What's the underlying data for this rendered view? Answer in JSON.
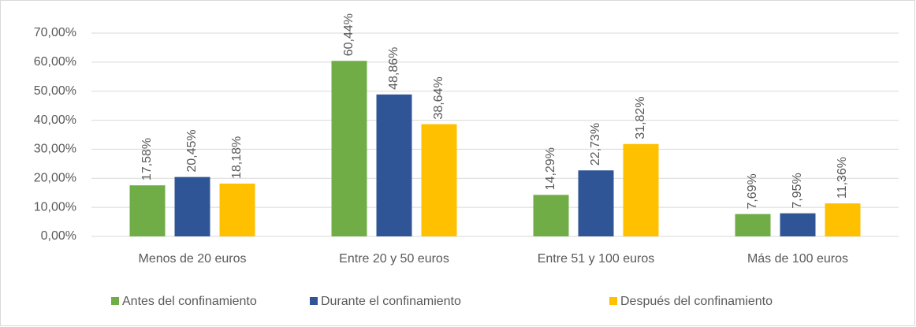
{
  "chart_data": {
    "type": "bar",
    "categories": [
      "Menos de 20 euros",
      "Entre 20 y 50 euros",
      "Entre 51 y 100 euros",
      "Más de 100 euros"
    ],
    "series": [
      {
        "name": "Antes del confinamiento",
        "color": "#70ad47",
        "values": [
          17.58,
          60.44,
          14.29,
          7.69
        ],
        "value_labels": [
          "17,58%",
          "60,44%",
          "14,29%",
          "7,69%"
        ]
      },
      {
        "name": "Durante el confinamiento",
        "color": "#2f5597",
        "values": [
          20.45,
          48.86,
          22.73,
          7.95
        ],
        "value_labels": [
          "20,45%",
          "48,86%",
          "22,73%",
          "7,95%"
        ]
      },
      {
        "name": "Después del confinamiento",
        "color": "#ffc000",
        "values": [
          18.18,
          38.64,
          31.82,
          11.36
        ],
        "value_labels": [
          "18,18%",
          "38,64%",
          "31,82%",
          "11,36%"
        ]
      }
    ],
    "ylim": [
      0,
      70
    ],
    "yticks": [
      {
        "value": 0,
        "label": "0,00%"
      },
      {
        "value": 10,
        "label": "10,00%"
      },
      {
        "value": 20,
        "label": "20,00%"
      },
      {
        "value": 30,
        "label": "30,00%"
      },
      {
        "value": 40,
        "label": "40,00%"
      },
      {
        "value": 50,
        "label": "50,00%"
      },
      {
        "value": 60,
        "label": "60,00%"
      },
      {
        "value": 70,
        "label": "70,00%"
      }
    ],
    "grid": true,
    "legend": "bottom"
  }
}
